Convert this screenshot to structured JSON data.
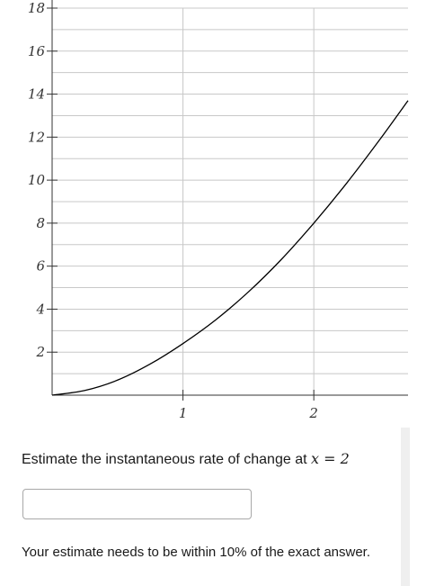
{
  "chart_data": {
    "type": "line",
    "title": "",
    "xlabel": "",
    "ylabel": "",
    "xlim": [
      0,
      2.72
    ],
    "ylim": [
      0,
      18
    ],
    "x_ticks": [
      1,
      2
    ],
    "x_tick_labels": [
      "1",
      "2"
    ],
    "y_ticks": [
      2,
      4,
      6,
      8,
      10,
      12,
      14,
      16,
      18
    ],
    "y_tick_labels": [
      "2",
      "4",
      "6",
      "8",
      "10",
      "12",
      "14",
      "16",
      "18"
    ],
    "grid": true,
    "series": [
      {
        "x": [
          0,
          0.25,
          0.5,
          0.75,
          1.0,
          1.25,
          1.5,
          1.75,
          2.0,
          2.25,
          2.5,
          2.72
        ],
        "y": [
          0,
          0.22,
          0.7,
          1.45,
          2.4,
          3.5,
          4.8,
          6.3,
          8.0,
          9.85,
          11.85,
          13.7
        ]
      }
    ],
    "colors": {
      "curve": "#000000",
      "grid": "#c8c8c8",
      "axis": "#333333"
    }
  },
  "question": {
    "prompt_text": "Estimate the instantaneous rate of change at",
    "math_expression": "x = 2",
    "answer_value": "",
    "answer_placeholder": "",
    "note": "Your estimate needs to be within 10% of the exact answer."
  }
}
